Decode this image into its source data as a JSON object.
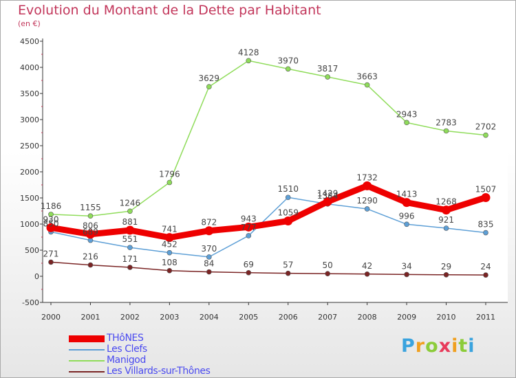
{
  "chart_data": {
    "type": "line",
    "title": "Evolution du Montant de la Dette par Habitant",
    "subtitle": "(en €)",
    "xlabel": "",
    "ylabel": "",
    "ylim": [
      -500,
      4500
    ],
    "yticks": [
      "-500",
      "0",
      "500",
      "1000",
      "1500",
      "2000",
      "2500",
      "3000",
      "3500",
      "4000",
      "4500"
    ],
    "categories": [
      "2000",
      "2001",
      "2002",
      "2003",
      "2004",
      "2005",
      "2006",
      "2007",
      "2008",
      "2009",
      "2010",
      "2011"
    ],
    "grid": false,
    "series": [
      {
        "name": "THôNES",
        "color": "#ee0000",
        "values": [
          930,
          806,
          881,
          741,
          872,
          943,
          1059,
          1429,
          1732,
          1413,
          1268,
          1507
        ],
        "labels": [
          "930",
          "806",
          "881",
          "741",
          "872",
          "943",
          "1059",
          "1429",
          "1732",
          "1413",
          "1268",
          "1507"
        ]
      },
      {
        "name": "Les Clefs",
        "color": "#5d9fd6",
        "values": [
          850,
          689,
          551,
          452,
          370,
          777,
          1510,
          1384,
          1290,
          996,
          921,
          835
        ],
        "labels": [
          "850",
          "689",
          "551",
          "452",
          "370",
          "777",
          "1510",
          "1384",
          "1290",
          "996",
          "921",
          "835"
        ]
      },
      {
        "name": "Manigod",
        "color": "#8fdc5a",
        "values": [
          1186,
          1155,
          1246,
          1796,
          3629,
          4128,
          3970,
          3817,
          3663,
          2943,
          2783,
          2702
        ],
        "labels": [
          "1186",
          "1155",
          "1246",
          "1796",
          "3629",
          "4128",
          "3970",
          "3817",
          "3663",
          "2943",
          "2783",
          "2702"
        ]
      },
      {
        "name": "Les Villards-sur-Thônes",
        "color": "#7a2424",
        "values": [
          271,
          216,
          171,
          108,
          84,
          69,
          57,
          50,
          42,
          34,
          29,
          24
        ],
        "labels": [
          "271",
          "216",
          "171",
          "108",
          "84",
          "69",
          "57",
          "50",
          "42",
          "34",
          "29",
          "24"
        ]
      }
    ]
  },
  "logo": {
    "text": "Proxiti",
    "letters": [
      "P",
      "r",
      "o",
      "x",
      "i",
      "t",
      "i"
    ],
    "colors": [
      "#3aa3de",
      "#f0a020",
      "#8ccc3a",
      "#e83a5a",
      "#f0a020",
      "#8ccc3a",
      "#3aa3de"
    ]
  }
}
